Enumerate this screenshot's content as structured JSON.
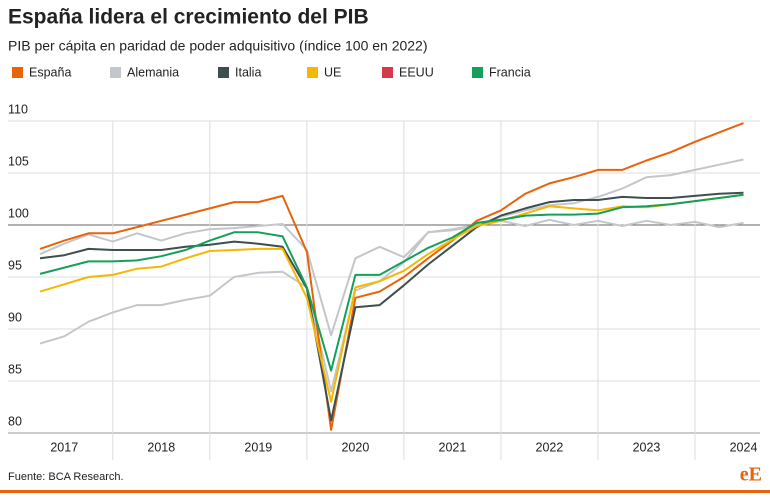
{
  "chart_data": {
    "type": "line",
    "title": "España lidera el crecimiento del PIB",
    "subtitle": "PIB per cápita en paridad de poder adquisitivo (índice 100 en 2022)",
    "source": "Fuente: BCA Research.",
    "logo": "eE",
    "x": [
      2017,
      2017.25,
      2017.5,
      2017.75,
      2018,
      2018.25,
      2018.5,
      2018.75,
      2019,
      2019.25,
      2019.5,
      2019.75,
      2020,
      2020.25,
      2020.5,
      2020.75,
      2021,
      2021.25,
      2021.5,
      2021.75,
      2022,
      2022.25,
      2022.5,
      2022.75,
      2023,
      2023.25,
      2023.5,
      2023.75,
      2024,
      2024.25
    ],
    "xlim": [
      2016.67,
      2024.42
    ],
    "xticks": [
      {
        "value": 2017.25,
        "label": "2017"
      },
      {
        "value": 2018.25,
        "label": "2018"
      },
      {
        "value": 2019.25,
        "label": "2019"
      },
      {
        "value": 2020.25,
        "label": "2020"
      },
      {
        "value": 2021.25,
        "label": "2021"
      },
      {
        "value": 2022.25,
        "label": "2022"
      },
      {
        "value": 2023.25,
        "label": "2023"
      },
      {
        "value": 2024.25,
        "label": "2024"
      }
    ],
    "ylim": [
      80,
      110
    ],
    "yticks": [
      80,
      85,
      90,
      95,
      100,
      105,
      110
    ],
    "grid": true,
    "legend": "top",
    "series": [
      {
        "name": "España",
        "color": "#e8630a",
        "values": [
          97.7,
          98.5,
          99.2,
          99.2,
          99.8,
          100.4,
          101.0,
          101.6,
          102.2,
          102.2,
          102.8,
          97.4,
          80.3,
          93.0,
          93.6,
          95.0,
          96.8,
          98.5,
          100.4,
          101.4,
          103.0,
          104.0,
          104.6,
          105.3,
          105.3,
          106.2,
          107.0,
          108.0,
          108.9,
          109.8
        ]
      },
      {
        "name": "Alemania",
        "color": "#c3c6ca",
        "values": [
          97.2,
          98.2,
          99.1,
          98.4,
          99.2,
          98.5,
          99.2,
          99.6,
          99.7,
          99.9,
          100.1,
          97.6,
          89.4,
          96.8,
          97.9,
          96.9,
          99.3,
          99.5,
          99.9,
          100.4,
          99.9,
          100.5,
          100.0,
          100.4,
          99.9,
          100.4,
          100.0,
          100.3,
          99.8,
          100.2
        ]
      },
      {
        "name": "Italia",
        "color": "#3d4f4f",
        "values": [
          96.8,
          97.1,
          97.7,
          97.6,
          97.6,
          97.6,
          97.9,
          98.1,
          98.4,
          98.2,
          97.9,
          93.9,
          81.2,
          92.1,
          92.3,
          94.2,
          96.2,
          98.0,
          99.8,
          100.9,
          101.6,
          102.2,
          102.4,
          102.4,
          102.7,
          102.6,
          102.6,
          102.8,
          103.0,
          103.1
        ]
      },
      {
        "name": "UE",
        "color": "#f5b800",
        "values": [
          93.6,
          94.3,
          95.0,
          95.2,
          95.8,
          96.0,
          96.8,
          97.5,
          97.6,
          97.7,
          97.7,
          93.0,
          83.0,
          94.0,
          94.6,
          95.6,
          97.2,
          98.6,
          99.9,
          100.4,
          101.1,
          101.8,
          101.6,
          101.4,
          101.8,
          101.7,
          102.0,
          102.3,
          102.6,
          102.9
        ]
      },
      {
        "name": "EEUU",
        "color": "#c3c6ca",
        "legend_color": "#d63a4a",
        "values": [
          88.6,
          89.3,
          90.7,
          91.6,
          92.3,
          92.3,
          92.8,
          93.2,
          95.0,
          95.4,
          95.5,
          94.0,
          84.0,
          93.7,
          94.6,
          96.4,
          99.3,
          99.6,
          100.0,
          100.8,
          101.4,
          101.9,
          102.1,
          102.7,
          103.5,
          104.6,
          104.8,
          105.3,
          105.8,
          106.3
        ]
      },
      {
        "name": "Francia",
        "color": "#14a05a",
        "values": [
          95.3,
          95.9,
          96.5,
          96.5,
          96.6,
          97.0,
          97.6,
          98.5,
          99.3,
          99.3,
          98.9,
          94.0,
          86.0,
          95.2,
          95.2,
          96.5,
          97.8,
          98.8,
          100.2,
          100.5,
          100.9,
          101.0,
          101.0,
          101.1,
          101.7,
          101.8,
          102.0,
          102.3,
          102.6,
          102.9
        ]
      }
    ]
  }
}
